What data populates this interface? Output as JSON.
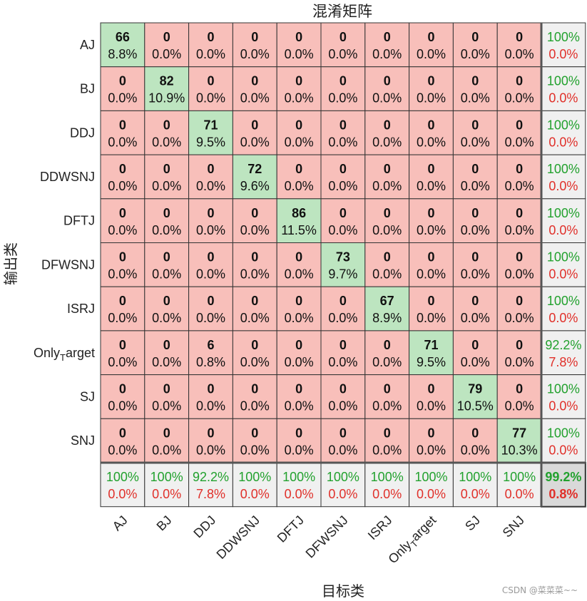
{
  "chart_data": {
    "type": "heatmap",
    "title": "混淆矩阵",
    "xlabel": "目标类",
    "ylabel": "输出类",
    "row_labels": [
      "AJ",
      "BJ",
      "DDJ",
      "DDWSNJ",
      "DFTJ",
      "DFWSNJ",
      "ISRJ",
      "Only_Target",
      "SJ",
      "SNJ"
    ],
    "col_labels": [
      "AJ",
      "BJ",
      "DDJ",
      "DDWSNJ",
      "DFTJ",
      "DFWSNJ",
      "ISRJ",
      "Only_Target",
      "SJ",
      "SNJ"
    ],
    "counts": [
      [
        66,
        0,
        0,
        0,
        0,
        0,
        0,
        0,
        0,
        0
      ],
      [
        0,
        82,
        0,
        0,
        0,
        0,
        0,
        0,
        0,
        0
      ],
      [
        0,
        0,
        71,
        0,
        0,
        0,
        0,
        0,
        0,
        0
      ],
      [
        0,
        0,
        0,
        72,
        0,
        0,
        0,
        0,
        0,
        0
      ],
      [
        0,
        0,
        0,
        0,
        86,
        0,
        0,
        0,
        0,
        0
      ],
      [
        0,
        0,
        0,
        0,
        0,
        73,
        0,
        0,
        0,
        0
      ],
      [
        0,
        0,
        0,
        0,
        0,
        0,
        67,
        0,
        0,
        0
      ],
      [
        0,
        0,
        6,
        0,
        0,
        0,
        0,
        71,
        0,
        0
      ],
      [
        0,
        0,
        0,
        0,
        0,
        0,
        0,
        0,
        79,
        0
      ],
      [
        0,
        0,
        0,
        0,
        0,
        0,
        0,
        0,
        0,
        77
      ]
    ],
    "percents": [
      [
        "8.8%",
        "0.0%",
        "0.0%",
        "0.0%",
        "0.0%",
        "0.0%",
        "0.0%",
        "0.0%",
        "0.0%",
        "0.0%"
      ],
      [
        "0.0%",
        "10.9%",
        "0.0%",
        "0.0%",
        "0.0%",
        "0.0%",
        "0.0%",
        "0.0%",
        "0.0%",
        "0.0%"
      ],
      [
        "0.0%",
        "0.0%",
        "9.5%",
        "0.0%",
        "0.0%",
        "0.0%",
        "0.0%",
        "0.0%",
        "0.0%",
        "0.0%"
      ],
      [
        "0.0%",
        "0.0%",
        "0.0%",
        "9.6%",
        "0.0%",
        "0.0%",
        "0.0%",
        "0.0%",
        "0.0%",
        "0.0%"
      ],
      [
        "0.0%",
        "0.0%",
        "0.0%",
        "0.0%",
        "11.5%",
        "0.0%",
        "0.0%",
        "0.0%",
        "0.0%",
        "0.0%"
      ],
      [
        "0.0%",
        "0.0%",
        "0.0%",
        "0.0%",
        "0.0%",
        "9.7%",
        "0.0%",
        "0.0%",
        "0.0%",
        "0.0%"
      ],
      [
        "0.0%",
        "0.0%",
        "0.0%",
        "0.0%",
        "0.0%",
        "0.0%",
        "8.9%",
        "0.0%",
        "0.0%",
        "0.0%"
      ],
      [
        "0.0%",
        "0.0%",
        "0.8%",
        "0.0%",
        "0.0%",
        "0.0%",
        "0.0%",
        "9.5%",
        "0.0%",
        "0.0%"
      ],
      [
        "0.0%",
        "0.0%",
        "0.0%",
        "0.0%",
        "0.0%",
        "0.0%",
        "0.0%",
        "0.0%",
        "10.5%",
        "0.0%"
      ],
      [
        "0.0%",
        "0.0%",
        "0.0%",
        "0.0%",
        "0.0%",
        "0.0%",
        "0.0%",
        "0.0%",
        "0.0%",
        "10.3%"
      ]
    ],
    "row_summary": [
      [
        "100%",
        "0.0%"
      ],
      [
        "100%",
        "0.0%"
      ],
      [
        "100%",
        "0.0%"
      ],
      [
        "100%",
        "0.0%"
      ],
      [
        "100%",
        "0.0%"
      ],
      [
        "100%",
        "0.0%"
      ],
      [
        "100%",
        "0.0%"
      ],
      [
        "92.2%",
        "7.8%"
      ],
      [
        "100%",
        "0.0%"
      ],
      [
        "100%",
        "0.0%"
      ]
    ],
    "col_summary": [
      [
        "100%",
        "0.0%"
      ],
      [
        "100%",
        "0.0%"
      ],
      [
        "92.2%",
        "7.8%"
      ],
      [
        "100%",
        "0.0%"
      ],
      [
        "100%",
        "0.0%"
      ],
      [
        "100%",
        "0.0%"
      ],
      [
        "100%",
        "0.0%"
      ],
      [
        "100%",
        "0.0%"
      ],
      [
        "100%",
        "0.0%"
      ],
      [
        "100%",
        "0.0%"
      ]
    ],
    "overall": [
      "99.2%",
      "0.8%"
    ]
  },
  "colors": {
    "correct": "#bde5c0",
    "wrong": "#f8bfba",
    "summary": "#f0f0f0",
    "overall": "#d9d9d9",
    "grid": "#333333"
  },
  "watermark": "CSDN @菜菜菜~~"
}
